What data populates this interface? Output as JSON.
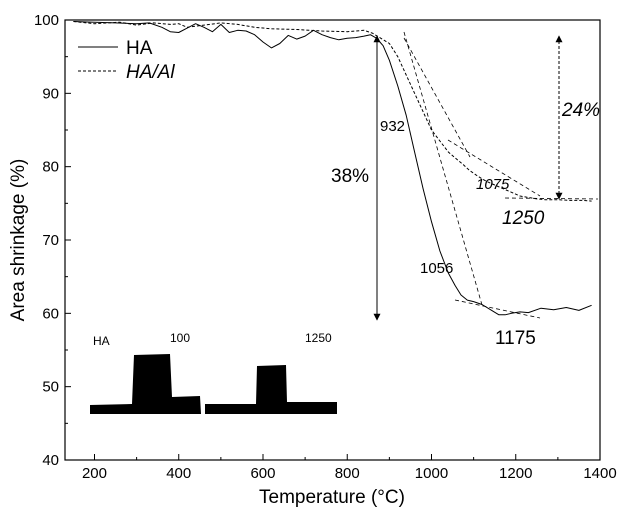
{
  "chart_data": {
    "type": "line",
    "title": "",
    "xlabel": "Temperature (°C)",
    "ylabel": "Area shrinkage (%)",
    "xlim": [
      130,
      1400
    ],
    "ylim": [
      40,
      100
    ],
    "xticks": [
      "200",
      "400",
      "600",
      "800",
      "1000",
      "1200",
      "1400"
    ],
    "yticks": [
      "40",
      "50",
      "60",
      "70",
      "80",
      "90",
      "100"
    ],
    "grid": false,
    "legend_position": "top-left",
    "series": [
      {
        "name": "HA",
        "style": "solid",
        "color": "#000000",
        "x": [
          150,
          200,
          250,
          300,
          330,
          360,
          380,
          400,
          420,
          440,
          460,
          480,
          500,
          520,
          540,
          560,
          580,
          600,
          620,
          640,
          660,
          680,
          700,
          720,
          740,
          760,
          780,
          800,
          820,
          840,
          855,
          870,
          885,
          900,
          920,
          940,
          960,
          980,
          1000,
          1020,
          1040,
          1056,
          1070,
          1085,
          1100,
          1120,
          1140,
          1160,
          1175,
          1190,
          1210,
          1230,
          1260,
          1290,
          1320,
          1350,
          1380
        ],
        "y": [
          99.8,
          99.7,
          99.6,
          99.5,
          99.6,
          99.0,
          98.4,
          98.3,
          98.9,
          99.5,
          99.0,
          98.4,
          99.4,
          98.3,
          98.6,
          98.5,
          98.0,
          97.0,
          96.2,
          96.8,
          97.9,
          97.4,
          97.8,
          98.6,
          98.0,
          97.6,
          97.3,
          97.5,
          97.6,
          97.8,
          98.0,
          97.5,
          96.5,
          94.5,
          91.0,
          87.0,
          82.0,
          77.0,
          72.5,
          68.5,
          65.5,
          63.8,
          62.5,
          61.8,
          61.6,
          61.2,
          60.5,
          59.8,
          59.8,
          60.0,
          60.2,
          60.1,
          60.7,
          60.5,
          60.8,
          60.4,
          61.1
        ]
      },
      {
        "name": "HA/Al",
        "style": "dashed",
        "color": "#000000",
        "x": [
          150,
          200,
          260,
          300,
          340,
          380,
          400,
          420,
          460,
          500,
          540,
          580,
          620,
          680,
          740,
          800,
          840,
          860,
          880,
          900,
          920,
          940,
          960,
          980,
          1000,
          1020,
          1040,
          1060,
          1075,
          1090,
          1110,
          1130,
          1150,
          1170,
          1190,
          1210,
          1230,
          1250,
          1270,
          1300,
          1330,
          1360,
          1380
        ],
        "y": [
          99.8,
          99.5,
          99.7,
          99.3,
          99.6,
          99.4,
          99.5,
          99.0,
          99.3,
          99.6,
          99.4,
          99.0,
          98.8,
          98.7,
          98.5,
          98.4,
          98.6,
          98.2,
          97.5,
          96.8,
          95.0,
          92.5,
          90.0,
          87.5,
          85.0,
          83.5,
          82.0,
          81.0,
          80.3,
          79.5,
          78.7,
          78.0,
          77.5,
          77.0,
          76.5,
          76.0,
          75.8,
          75.6,
          75.5,
          75.5,
          75.4,
          75.4,
          75.3
        ]
      }
    ],
    "annotations": [
      {
        "text": "932",
        "size": "small",
        "italic": false
      },
      {
        "text": "38%",
        "size": "big",
        "italic": false
      },
      {
        "text": "1056",
        "size": "small",
        "italic": false
      },
      {
        "text": "1175",
        "size": "big",
        "italic": false
      },
      {
        "text": "24%",
        "size": "big",
        "italic": true
      },
      {
        "text": "1075",
        "size": "small",
        "italic": true
      },
      {
        "text": "1250",
        "size": "big",
        "italic": true
      }
    ],
    "arrows": [
      {
        "label": "38%",
        "x": 850,
        "y_from": 98,
        "y_to": 57.5,
        "style": "solid"
      },
      {
        "label": "24%",
        "x": 1290,
        "y_from": 98,
        "y_to": 76,
        "style": "dashed"
      }
    ],
    "inset": {
      "sample_label": "HA",
      "temp_labels": [
        "100",
        "1250"
      ]
    }
  }
}
